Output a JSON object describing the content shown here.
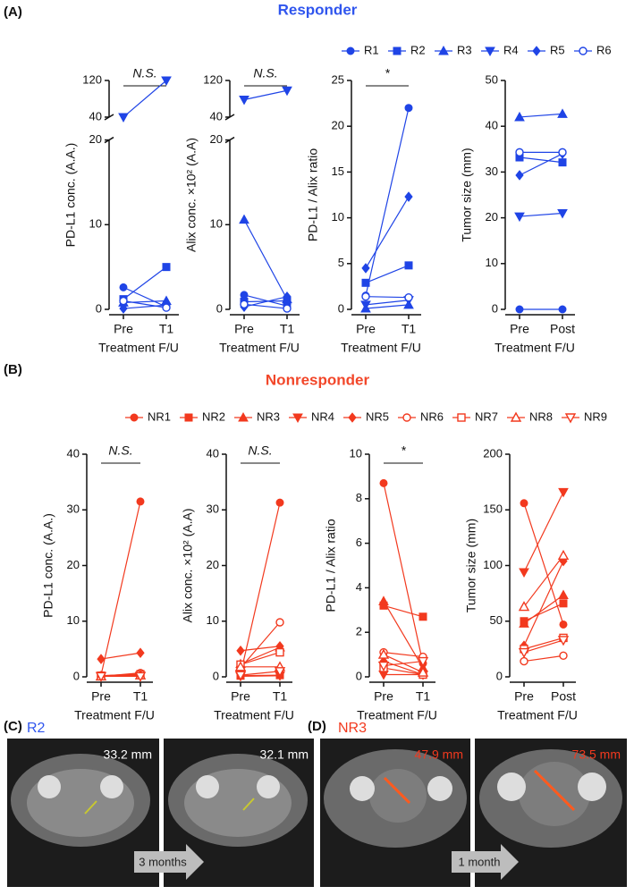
{
  "figure": {
    "panel_labels": [
      "(A)",
      "(B)",
      "(C)",
      "(D)"
    ],
    "group_titles": [
      "Responder",
      "Nonresponder"
    ],
    "scans": [
      {
        "patient": "R2",
        "measurements": [
          "33.2 mm",
          "32.1 mm"
        ],
        "interval": "3 months"
      },
      {
        "patient": "NR3",
        "measurements": [
          "47.9 mm",
          "73.5 mm"
        ],
        "interval": "1 month"
      }
    ]
  },
  "chart_data": [
    {
      "type": "line",
      "ylabel": "PD-L1 conc. (A.A.)",
      "xlabel": "Treatment F/U",
      "categories": [
        "Pre",
        "T1"
      ],
      "ylim": [
        0,
        120
      ],
      "ybreak": [
        20,
        40
      ],
      "yticks": [
        0,
        10,
        20,
        40,
        120
      ],
      "annotation": "N.S.",
      "legend": "top",
      "series": [
        {
          "name": "R1",
          "color": "#1f44e6",
          "marker": "circle",
          "values": [
            2.6,
            0.3
          ]
        },
        {
          "name": "R2",
          "color": "#1f44e6",
          "marker": "square",
          "values": [
            1.2,
            5.0
          ]
        },
        {
          "name": "R3",
          "color": "#1f44e6",
          "marker": "triangle",
          "values": [
            0.8,
            1.0
          ]
        },
        {
          "name": "R4",
          "color": "#1f44e6",
          "marker": "triangle-down",
          "values": [
            40,
            120
          ]
        },
        {
          "name": "R5",
          "color": "#1f44e6",
          "marker": "diamond",
          "values": [
            0.1,
            0.5
          ]
        },
        {
          "name": "R6",
          "color": "#1f44e6",
          "marker": "circle-open",
          "values": [
            1.0,
            0.2
          ]
        }
      ]
    },
    {
      "type": "line",
      "ylabel": "Alix conc. ×10² (A.A)",
      "xlabel": "Treatment F/U",
      "categories": [
        "Pre",
        "T1"
      ],
      "ylim": [
        0,
        120
      ],
      "ybreak": [
        20,
        40
      ],
      "yticks": [
        0,
        10,
        20,
        40,
        120
      ],
      "annotation": "N.S.",
      "series": [
        {
          "name": "R1",
          "color": "#1f44e6",
          "marker": "circle",
          "values": [
            1.7,
            0.4
          ]
        },
        {
          "name": "R2",
          "color": "#1f44e6",
          "marker": "square",
          "values": [
            0.9,
            1.0
          ]
        },
        {
          "name": "R3",
          "color": "#1f44e6",
          "marker": "triangle",
          "values": [
            10.6,
            1.2
          ]
        },
        {
          "name": "R4",
          "color": "#1f44e6",
          "marker": "triangle-down",
          "values": [
            78,
            98
          ]
        },
        {
          "name": "R5",
          "color": "#1f44e6",
          "marker": "diamond",
          "values": [
            0.3,
            1.5
          ]
        },
        {
          "name": "R6",
          "color": "#1f44e6",
          "marker": "circle-open",
          "values": [
            0.6,
            0.1
          ]
        }
      ]
    },
    {
      "type": "line",
      "ylabel": "PD-L1 / Alix ratio",
      "xlabel": "Treatment F/U",
      "categories": [
        "Pre",
        "T1"
      ],
      "ylim": [
        0,
        25
      ],
      "yticks": [
        0,
        5,
        10,
        15,
        20,
        25
      ],
      "annotation": "*",
      "series": [
        {
          "name": "R1",
          "color": "#1f44e6",
          "marker": "circle",
          "values": [
            1.5,
            22.0
          ]
        },
        {
          "name": "R2",
          "color": "#1f44e6",
          "marker": "square",
          "values": [
            2.9,
            4.8
          ]
        },
        {
          "name": "R3",
          "color": "#1f44e6",
          "marker": "triangle",
          "values": [
            0.1,
            0.5
          ]
        },
        {
          "name": "R4",
          "color": "#1f44e6",
          "marker": "triangle-down",
          "values": [
            0.5,
            1.0
          ]
        },
        {
          "name": "R5",
          "color": "#1f44e6",
          "marker": "diamond",
          "values": [
            4.5,
            12.3
          ]
        },
        {
          "name": "R6",
          "color": "#1f44e6",
          "marker": "circle-open",
          "values": [
            1.4,
            1.3
          ]
        }
      ]
    },
    {
      "type": "line",
      "ylabel": "Tumor size (mm)",
      "xlabel": "Treatment F/U",
      "categories": [
        "Pre",
        "Post"
      ],
      "ylim": [
        0,
        50
      ],
      "yticks": [
        0,
        10,
        20,
        30,
        40,
        50
      ],
      "series": [
        {
          "name": "R1",
          "color": "#1f44e6",
          "marker": "circle",
          "values": [
            0,
            0
          ]
        },
        {
          "name": "R2",
          "color": "#1f44e6",
          "marker": "square",
          "values": [
            33.2,
            32.1
          ]
        },
        {
          "name": "R3",
          "color": "#1f44e6",
          "marker": "triangle",
          "values": [
            42.0,
            42.7
          ]
        },
        {
          "name": "R4",
          "color": "#1f44e6",
          "marker": "triangle-down",
          "values": [
            20.3,
            21.0
          ]
        },
        {
          "name": "R5",
          "color": "#1f44e6",
          "marker": "diamond",
          "values": [
            29.3,
            34.0
          ]
        },
        {
          "name": "R6",
          "color": "#1f44e6",
          "marker": "circle-open",
          "values": [
            34.3,
            34.3
          ]
        }
      ]
    },
    {
      "type": "line",
      "ylabel": "PD-L1 conc. (A.A.)",
      "xlabel": "Treatment F/U",
      "categories": [
        "Pre",
        "T1"
      ],
      "ylim": [
        0,
        40
      ],
      "yticks": [
        0,
        10,
        20,
        30,
        40
      ],
      "annotation": "N.S.",
      "legend": "top",
      "series": [
        {
          "name": "NR1",
          "color": "#f2391e",
          "marker": "circle",
          "values": [
            0.3,
            31.5
          ]
        },
        {
          "name": "NR2",
          "color": "#f2391e",
          "marker": "square",
          "values": [
            0.2,
            0.5
          ]
        },
        {
          "name": "NR3",
          "color": "#f2391e",
          "marker": "triangle",
          "values": [
            0.1,
            0.3
          ]
        },
        {
          "name": "NR4",
          "color": "#f2391e",
          "marker": "triangle-down",
          "values": [
            0.1,
            0.2
          ]
        },
        {
          "name": "NR5",
          "color": "#f2391e",
          "marker": "diamond",
          "values": [
            3.2,
            4.3
          ]
        },
        {
          "name": "NR6",
          "color": "#f2391e",
          "marker": "circle-open",
          "values": [
            0.1,
            0.7
          ]
        },
        {
          "name": "NR7",
          "color": "#f2391e",
          "marker": "square-open",
          "values": [
            0.2,
            0.4
          ]
        },
        {
          "name": "NR8",
          "color": "#f2391e",
          "marker": "triangle-open",
          "values": [
            0.1,
            0.3
          ]
        },
        {
          "name": "NR9",
          "color": "#f2391e",
          "marker": "triangle-down-open",
          "values": [
            0.1,
            0.1
          ]
        }
      ]
    },
    {
      "type": "line",
      "ylabel": "Alix conc. ×10² (A.A)",
      "xlabel": "Treatment F/U",
      "categories": [
        "Pre",
        "T1"
      ],
      "ylim": [
        0,
        40
      ],
      "yticks": [
        0,
        10,
        20,
        30,
        40
      ],
      "annotation": "N.S.",
      "series": [
        {
          "name": "NR1",
          "color": "#f2391e",
          "marker": "circle",
          "values": [
            0.5,
            31.3
          ]
        },
        {
          "name": "NR2",
          "color": "#f2391e",
          "marker": "square",
          "values": [
            0.2,
            0.3
          ]
        },
        {
          "name": "NR3",
          "color": "#f2391e",
          "marker": "triangle",
          "values": [
            2.3,
            5.3
          ]
        },
        {
          "name": "NR4",
          "color": "#f2391e",
          "marker": "triangle-down",
          "values": [
            0.1,
            0.2
          ]
        },
        {
          "name": "NR5",
          "color": "#f2391e",
          "marker": "diamond",
          "values": [
            4.7,
            5.5
          ]
        },
        {
          "name": "NR6",
          "color": "#f2391e",
          "marker": "circle-open",
          "values": [
            1.6,
            9.8
          ]
        },
        {
          "name": "NR7",
          "color": "#f2391e",
          "marker": "square-open",
          "values": [
            2.2,
            4.4
          ]
        },
        {
          "name": "NR8",
          "color": "#f2391e",
          "marker": "triangle-open",
          "values": [
            1.8,
            1.8
          ]
        },
        {
          "name": "NR9",
          "color": "#f2391e",
          "marker": "triangle-down-open",
          "values": [
            0.3,
            1.0
          ]
        }
      ]
    },
    {
      "type": "line",
      "ylabel": "PD-L1 / Alix ratio",
      "xlabel": "Treatment F/U",
      "categories": [
        "Pre",
        "T1"
      ],
      "ylim": [
        0,
        10
      ],
      "yticks": [
        0,
        2,
        4,
        6,
        8,
        10
      ],
      "annotation": "*",
      "series": [
        {
          "name": "NR1",
          "color": "#f2391e",
          "marker": "circle",
          "values": [
            8.7,
            0.6
          ]
        },
        {
          "name": "NR2",
          "color": "#f2391e",
          "marker": "square",
          "values": [
            3.2,
            2.7
          ]
        },
        {
          "name": "NR3",
          "color": "#f2391e",
          "marker": "triangle",
          "values": [
            3.4,
            0.4
          ]
        },
        {
          "name": "NR4",
          "color": "#f2391e",
          "marker": "triangle-down",
          "values": [
            0.1,
            0.1
          ]
        },
        {
          "name": "NR5",
          "color": "#f2391e",
          "marker": "diamond",
          "values": [
            0.7,
            0.1
          ]
        },
        {
          "name": "NR6",
          "color": "#f2391e",
          "marker": "circle-open",
          "values": [
            1.1,
            0.9
          ]
        },
        {
          "name": "NR7",
          "color": "#f2391e",
          "marker": "square-open",
          "values": [
            0.4,
            0.1
          ]
        },
        {
          "name": "NR8",
          "color": "#f2391e",
          "marker": "triangle-open",
          "values": [
            1.0,
            0.2
          ]
        },
        {
          "name": "NR9",
          "color": "#f2391e",
          "marker": "triangle-down-open",
          "values": [
            0.5,
            0.7
          ]
        }
      ]
    },
    {
      "type": "line",
      "ylabel": "Tumor size (mm)",
      "xlabel": "Treatment F/U",
      "categories": [
        "Pre",
        "Post"
      ],
      "ylim": [
        0,
        200
      ],
      "yticks": [
        0,
        50,
        100,
        150,
        200
      ],
      "series": [
        {
          "name": "NR1",
          "color": "#f2391e",
          "marker": "circle",
          "values": [
            156,
            47
          ]
        },
        {
          "name": "NR2",
          "color": "#f2391e",
          "marker": "square",
          "values": [
            50,
            66
          ]
        },
        {
          "name": "NR3",
          "color": "#f2391e",
          "marker": "triangle",
          "values": [
            47.9,
            73.5
          ]
        },
        {
          "name": "NR4",
          "color": "#f2391e",
          "marker": "triangle-down",
          "values": [
            94,
            166
          ]
        },
        {
          "name": "NR5",
          "color": "#f2391e",
          "marker": "diamond",
          "values": [
            28,
            104
          ]
        },
        {
          "name": "NR6",
          "color": "#f2391e",
          "marker": "circle-open",
          "values": [
            14,
            19
          ]
        },
        {
          "name": "NR7",
          "color": "#f2391e",
          "marker": "square-open",
          "values": [
            25,
            35
          ]
        },
        {
          "name": "NR8",
          "color": "#f2391e",
          "marker": "triangle-open",
          "values": [
            63,
            109
          ]
        },
        {
          "name": "NR9",
          "color": "#f2391e",
          "marker": "triangle-down-open",
          "values": [
            22,
            33
          ]
        }
      ]
    }
  ]
}
